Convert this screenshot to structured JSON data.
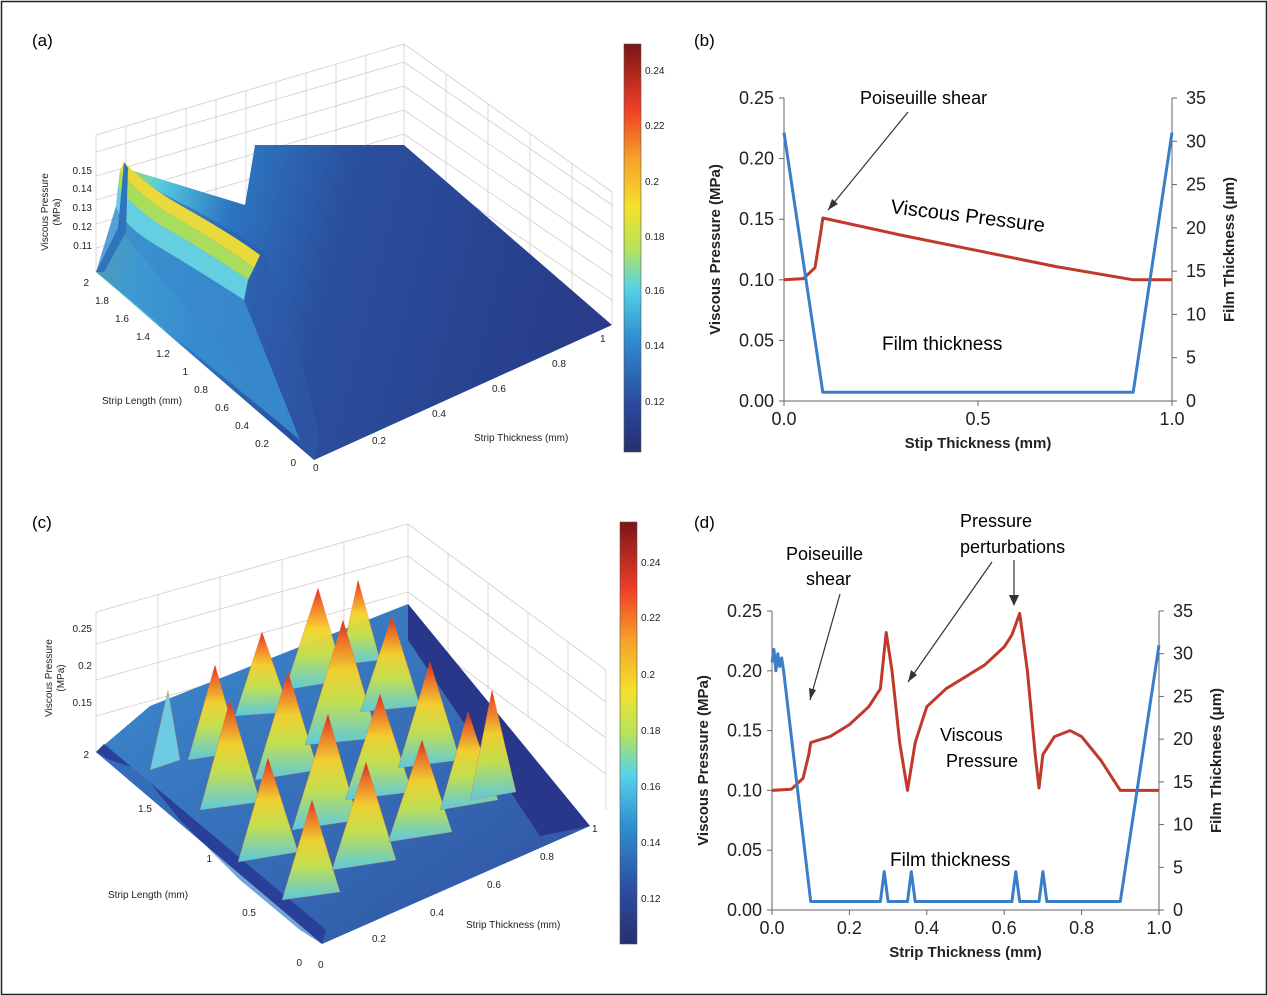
{
  "colors": {
    "pressure": "#c0392b",
    "film": "#3a7dc9",
    "frame": "#000000"
  },
  "colorbar": {
    "ticks": [
      "0.24",
      "0.22",
      "0.2",
      "0.18",
      "0.16",
      "0.14",
      "0.12"
    ]
  },
  "chart_data": [
    {
      "panel": "(a)",
      "type": "surface3d",
      "zlabel": "Viscous Pressure\n(MPa)",
      "ylabel": "Strip Length (mm)",
      "xlabel": "Strip Thickness (mm)",
      "zticks": [
        "0.15",
        "0.14",
        "0.13",
        "0.12",
        "0.11"
      ],
      "yticks": [
        "2",
        "1.8",
        "1.6",
        "1.4",
        "1.2",
        "1",
        "0.8",
        "0.6",
        "0.4",
        "0.2",
        "0"
      ],
      "xticks": [
        "0",
        "0.2",
        "0.4",
        "0.6",
        "0.8",
        "1"
      ],
      "colorbar_ticks": [
        "0.24",
        "0.22",
        "0.2",
        "0.18",
        "0.16",
        "0.14",
        "0.12"
      ]
    },
    {
      "panel": "(b)",
      "type": "line",
      "xlabel": "Stip Thickness (mm)",
      "ylabel": "Viscous  Pressure  (MPa)",
      "y2label": "Film Thickness  (μm)",
      "xticks": [
        "0.0",
        "0.5",
        "1.0"
      ],
      "yticks": [
        "0.25",
        "0.20",
        "0.15",
        "0.10",
        "0.05",
        "0.00"
      ],
      "y2ticks": [
        "35",
        "30",
        "25",
        "20",
        "15",
        "10",
        "5",
        "0"
      ],
      "xlim": [
        0,
        1.0
      ],
      "ylim": [
        0,
        0.25
      ],
      "y2lim": [
        0,
        35
      ],
      "annotations": {
        "shear": "Poiseuille shear",
        "pressure": "Viscous Pressure",
        "film": "Film thickness"
      },
      "series": [
        {
          "role": "pressure",
          "axis": "left",
          "x": [
            0,
            0.05,
            0.08,
            0.095,
            0.1,
            0.3,
            0.5,
            0.7,
            0.9,
            1.0
          ],
          "y": [
            0.1,
            0.101,
            0.11,
            0.14,
            0.151,
            0.137,
            0.124,
            0.111,
            0.1,
            0.1
          ]
        },
        {
          "role": "film",
          "axis": "right",
          "x": [
            0,
            0.1,
            0.9,
            1.0
          ],
          "y": [
            31,
            1,
            1,
            31
          ]
        }
      ]
    },
    {
      "panel": "(c)",
      "type": "surface3d",
      "zlabel": "Viscous Pressure\n(MPa)",
      "ylabel": "Strip Length (mm)",
      "xlabel": "Strip Thickness (mm)",
      "zticks": [
        "0.25",
        "0.2",
        "0.15"
      ],
      "yticks": [
        "2",
        "1.5",
        "1",
        "0.5",
        "0"
      ],
      "xticks": [
        "0",
        "0.2",
        "0.4",
        "0.6",
        "0.8",
        "1"
      ],
      "colorbar_ticks": [
        "0.24",
        "0.22",
        "0.2",
        "0.18",
        "0.16",
        "0.14",
        "0.12"
      ]
    },
    {
      "panel": "(d)",
      "type": "line",
      "xlabel": "Strip Thickness (mm)",
      "ylabel": "Viscous  Pressure  (MPa)",
      "y2label": "Film Thicknees  (μm)",
      "xticks": [
        "0.0",
        "0.2",
        "0.4",
        "0.6",
        "0.8",
        "1.0"
      ],
      "yticks": [
        "0.25",
        "0.20",
        "0.15",
        "0.10",
        "0.05",
        "0.00"
      ],
      "y2ticks": [
        "35",
        "30",
        "25",
        "20",
        "15",
        "10",
        "5",
        "0"
      ],
      "xlim": [
        0,
        1.0
      ],
      "ylim": [
        0,
        0.25
      ],
      "y2lim": [
        0,
        35
      ],
      "annotations": {
        "shear1": "Poiseuille",
        "shear2": "shear",
        "pert1": "Pressure",
        "pert2": "perturbations",
        "vp1": "Viscous",
        "vp2": "Pressure",
        "film": "Film thickness"
      },
      "series": [
        {
          "role": "pressure",
          "axis": "left",
          "x": [
            0,
            0.05,
            0.08,
            0.095,
            0.1,
            0.15,
            0.2,
            0.25,
            0.28,
            0.295,
            0.31,
            0.33,
            0.35,
            0.37,
            0.4,
            0.45,
            0.5,
            0.55,
            0.6,
            0.62,
            0.64,
            0.66,
            0.68,
            0.69,
            0.7,
            0.73,
            0.77,
            0.8,
            0.85,
            0.9,
            1.0
          ],
          "y": [
            0.1,
            0.101,
            0.11,
            0.13,
            0.14,
            0.145,
            0.155,
            0.17,
            0.185,
            0.232,
            0.2,
            0.14,
            0.1,
            0.14,
            0.17,
            0.185,
            0.195,
            0.205,
            0.22,
            0.23,
            0.248,
            0.2,
            0.13,
            0.102,
            0.13,
            0.145,
            0.15,
            0.145,
            0.125,
            0.1,
            0.1
          ]
        },
        {
          "role": "film",
          "axis": "right",
          "x": [
            0,
            0.005,
            0.01,
            0.015,
            0.02,
            0.025,
            0.03,
            0.1,
            0.28,
            0.29,
            0.3,
            0.35,
            0.36,
            0.37,
            0.62,
            0.63,
            0.64,
            0.69,
            0.7,
            0.71,
            0.9,
            1.0
          ],
          "y": [
            29,
            30.5,
            28,
            30,
            28.5,
            29.5,
            28,
            1,
            1,
            4.5,
            1,
            1,
            4.5,
            1,
            1,
            4.5,
            1,
            1,
            4.5,
            1,
            1,
            31
          ]
        }
      ]
    }
  ]
}
